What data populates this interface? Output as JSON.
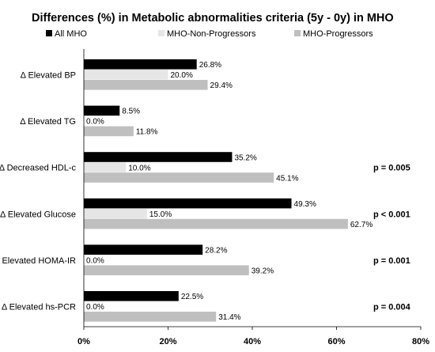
{
  "chart_data": {
    "type": "bar",
    "orientation": "horizontal",
    "title": "Differences (%) in Metabolic abnormalities criteria (5y - 0y) in MHO",
    "categories": [
      "Δ Elevated BP",
      "Δ Elevated TG",
      "Δ Decreased HDL-c",
      "Δ Elevated Glucose",
      "Δ Elevated HOMA-IR",
      "Δ Elevated hs-PCR"
    ],
    "series": [
      {
        "name": "All MHO",
        "color": "#000000",
        "values": [
          26.8,
          8.5,
          35.2,
          49.3,
          28.2,
          22.5
        ]
      },
      {
        "name": "MHO-Non-Progressors",
        "color": "#e6e6e6",
        "values": [
          20.0,
          0.0,
          10.0,
          15.0,
          0.0,
          0.0
        ]
      },
      {
        "name": "MHO-Progressors",
        "color": "#bfbfbf",
        "values": [
          29.4,
          11.8,
          45.1,
          62.7,
          39.2,
          31.4
        ]
      }
    ],
    "data_labels": [
      [
        "26.8%",
        "20.0%",
        "29.4%"
      ],
      [
        "8.5%",
        "0.0%",
        "11.8%"
      ],
      [
        "35.2%",
        "10.0%",
        "45.1%"
      ],
      [
        "49.3%",
        "15.0%",
        "62.7%"
      ],
      [
        "28.2%",
        "0.0%",
        "39.2%"
      ],
      [
        "22.5%",
        "0.0%",
        "31.4%"
      ]
    ],
    "p_values": [
      "",
      "",
      "p = 0.005",
      "p < 0.001",
      "p = 0.001",
      "p = 0.004"
    ],
    "xlim": [
      0,
      80
    ],
    "x_ticks": [
      0,
      20,
      40,
      60,
      80
    ],
    "x_tick_labels": [
      "0%",
      "20%",
      "40%",
      "60%",
      "80%"
    ],
    "grid": false,
    "legend_position": "top"
  }
}
